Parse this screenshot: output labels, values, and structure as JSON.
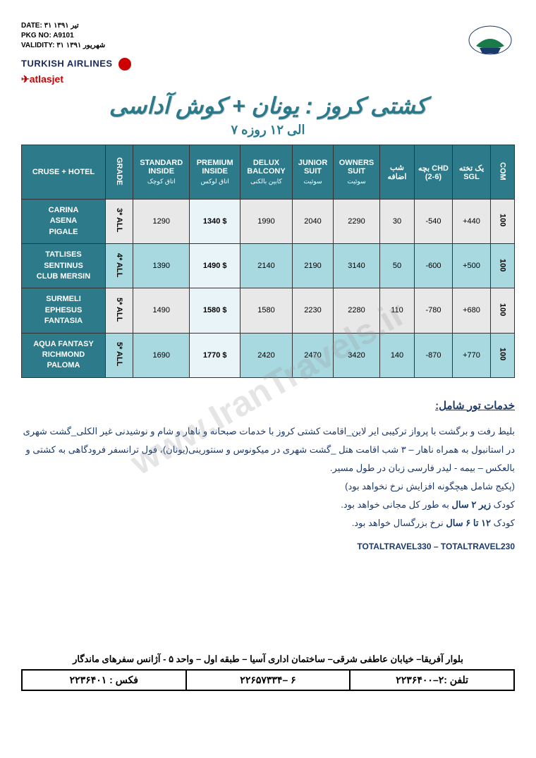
{
  "meta": {
    "date_label": "DATE:",
    "date_value": "۳۱ تیر ۱۳۹۱",
    "pkg_label": "PKG NO:",
    "pkg_value": "A9101",
    "validity_label": "VALIDITY:",
    "validity_value": "۳۱ شهریور ۱۳۹۱"
  },
  "airlines": {
    "turkish": "TURKISH AIRLINES",
    "atlasjet": "atlasjet"
  },
  "title": "کشتی کروز : یونان + کوش آداسی",
  "subtitle": "۷ الی ۱۲ روزه",
  "table": {
    "headers": {
      "hotel": "CRUSE + HOTEL",
      "grade": "GRADE",
      "standard": "STANDARD INSIDE",
      "standard_sub": "اتاق کوچک",
      "premium": "PREMIUM INSIDE",
      "premium_sub": "اتاق لوکس",
      "delux": "DELUX BALCONY",
      "delux_sub": "کابین بالکنی",
      "junior": "JUNIOR SUIT",
      "junior_sub": "سوئیت",
      "owners": "OWNERS SUIT",
      "owners_sub": "سوئیت",
      "extra": "شب اضافه",
      "chd": "بچه CHD (2-6)",
      "sgl": "یک تخته SGL",
      "com": "COM"
    },
    "rows": [
      {
        "hotels": "CARINA\nASENA\nPIGALE",
        "grade": "3* ALL",
        "standard": "1290",
        "premium": "1340 $",
        "delux": "1990",
        "junior": "2040",
        "owners": "2290",
        "extra": "30",
        "chd": "-540",
        "sgl": "+440",
        "com": "100"
      },
      {
        "hotels": "TATLISES\nSENTINUS\nCLUB MERSIN",
        "grade": "4* ALL",
        "standard": "1390",
        "premium": "1490 $",
        "delux": "2140",
        "junior": "2190",
        "owners": "3140",
        "extra": "50",
        "chd": "-600",
        "sgl": "+500",
        "com": "100"
      },
      {
        "hotels": "SURMELI\nEPHESUS\nFANTASIA",
        "grade": "5* ALL",
        "standard": "1490",
        "premium": "1580 $",
        "delux": "1580",
        "junior": "2230",
        "owners": "2280",
        "extra": "110",
        "chd": "-780",
        "sgl": "+680",
        "com": "100"
      },
      {
        "hotels": "AQUA FANTASY\nRICHMOND\nPALOMA",
        "grade": "5* ALL",
        "standard": "1690",
        "premium": "1770 $",
        "delux": "2420",
        "junior": "2470",
        "owners": "3420",
        "extra": "140",
        "chd": "-870",
        "sgl": "+770",
        "com": "100"
      }
    ]
  },
  "services": {
    "title": "خدمات تور شامل:",
    "line1": "بلیط رفت و برگشت با پرواز ترکیبی ایر لاین_اقامت کشتی کروز با خدمات صبحانه و ناهار و شام و نوشیدنی غیر الکلی_گشت شهری در استانبول به همراه ناهار – ۳ شب اقامت هتل _گشت شهری در میکونوس و سنتورینی(یونان)، فول ترانسفر فرودگاهی به کشتی و بالعکس – بیمه - لیدر فارسی زبان در طول مسیر.",
    "line2": "(پکیج شامل هیچگونه افزایش نرخ نخواهد بود)",
    "line3_a": "کودک ",
    "line3_b": "زیر ۲ سال",
    "line3_c": " به طور کل مجانی خواهد بود.",
    "line4_a": "کودک  ",
    "line4_b": "۱۲ تا ۶ سال",
    "line4_c": " نرخ بزرگسال خواهد بود.",
    "totals": "TOTALTRAVEL330 – TOTALTRAVEL230"
  },
  "watermark": "www.IranTravels.ir",
  "footer": {
    "address": "بلوار آفریقا– خیابان عاطفی شرقی– ساختمان اداری آسیا – طبقه اول – واحد ۵ - آژانس سفرهای ماندگار",
    "tel_label": "تلفن :",
    "tel": "۲–۲۲۳۶۴۰۰",
    "mid": "۶ –۲۲۶۵۷۳۳۴",
    "fax_label": "فکس :",
    "fax": "۲۲۳۶۴۰۱"
  },
  "colors": {
    "header_bg": "#2d7a8a",
    "row_light": "#e8e8e8",
    "row_cyan": "#a8d8e0",
    "premium_bg": "#e8f4f8",
    "title_color": "#2a7a8c"
  }
}
